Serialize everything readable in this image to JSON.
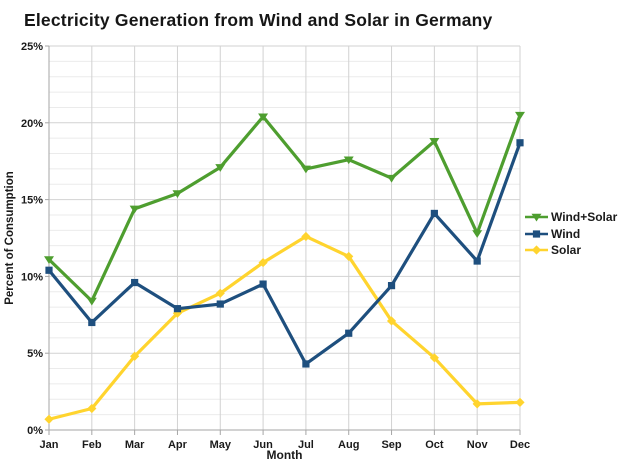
{
  "chart_data": {
    "type": "line",
    "title": "Electricity Generation from Wind and Solar in Germany",
    "xlabel": "Month",
    "ylabel": "Percent of Consumption",
    "x": [
      "Jan",
      "Feb",
      "Mar",
      "Apr",
      "May",
      "Jun",
      "Jul",
      "Aug",
      "Sep",
      "Oct",
      "Nov",
      "Dec"
    ],
    "ylim": [
      0,
      25
    ],
    "y_major_step": 5,
    "y_minor_step": 1,
    "y_tick_suffix": "%",
    "grid": true,
    "legend_position": "right",
    "series": [
      {
        "name": "Wind+Solar",
        "color": "#4E9E2F",
        "marker": "triangle-down",
        "values": [
          11.1,
          8.4,
          14.4,
          15.4,
          17.1,
          20.4,
          17.0,
          17.6,
          16.4,
          18.8,
          12.8,
          20.5
        ]
      },
      {
        "name": "Wind",
        "color": "#1E4F7E",
        "marker": "square",
        "values": [
          10.4,
          7.0,
          9.6,
          7.9,
          8.2,
          9.5,
          4.3,
          6.3,
          9.4,
          14.1,
          11.0,
          18.7
        ]
      },
      {
        "name": "Solar",
        "color": "#FFD42E",
        "marker": "diamond",
        "values": [
          0.7,
          1.4,
          4.8,
          7.6,
          8.9,
          10.9,
          12.6,
          11.3,
          7.1,
          4.7,
          1.7,
          1.8
        ]
      }
    ]
  },
  "colors": {
    "background": "#ffffff",
    "title_text": "#161616",
    "axis_text": "#1a1a1a",
    "minor_grid": "#ebebeb",
    "major_grid": "#d2d2d2",
    "vertical_grid": "#d2d2d2",
    "axis_line": "#a6a6a6"
  }
}
